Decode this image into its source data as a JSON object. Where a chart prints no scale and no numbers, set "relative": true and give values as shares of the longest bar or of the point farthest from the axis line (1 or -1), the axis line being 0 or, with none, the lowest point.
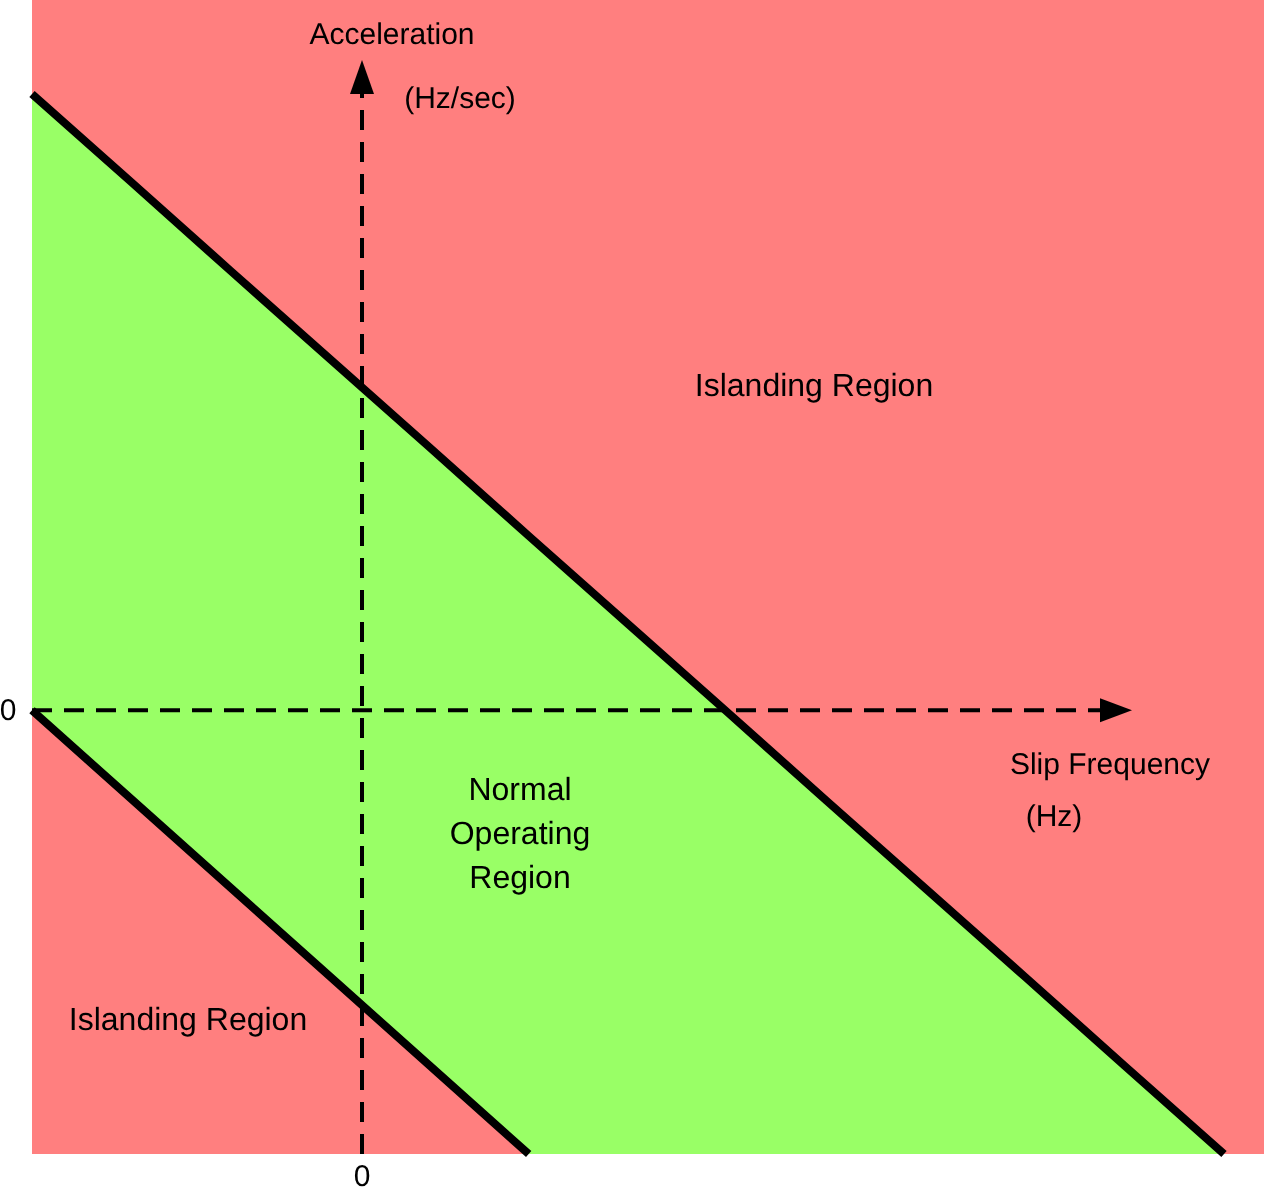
{
  "chart_data": {
    "type": "line",
    "relative": true,
    "xlabel": "Slip Frequency\n(Hz)",
    "ylabel": "Acceleration\n(Hz/sec)",
    "categories": [
      null,
      null,
      null,
      null,
      null,
      null,
      null,
      null,
      null,
      null,
      null,
      null,
      null
    ],
    "series": [
      {
        "type": "line",
        "color": "#000000",
        "values": [
          1,
          0.857,
          0.713,
          0.57,
          0.427,
          0.283,
          0.14,
          -0.003,
          -0.147,
          -0.29,
          -0.433,
          -0.577,
          -0.72
        ]
      },
      {
        "type": "line",
        "color": "#000000",
        "values": [
          0,
          -0.144,
          -0.288,
          -0.432,
          -0.576,
          -0.72,
          null,
          null,
          null,
          null,
          null,
          null,
          null
        ]
      }
    ],
    "ref_lines": [
      {
        "axis": "y",
        "value": 0,
        "color": "#000000",
        "line_style": "dashed"
      }
    ],
    "annotations": [
      "Islanding Region",
      "Normal\nOperating\nRegion",
      "Islanding Region",
      "0",
      "0"
    ]
  }
}
